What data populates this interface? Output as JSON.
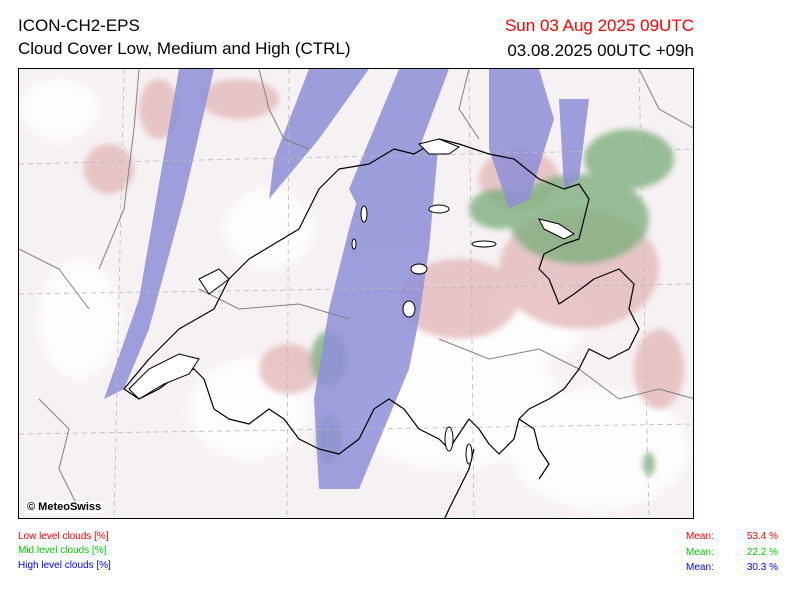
{
  "header": {
    "model": "ICON-CH2-EPS",
    "subtitle": "Cloud Cover Low, Medium and High (CTRL)",
    "valid_time": "Sun 03 Aug 2025 09UTC",
    "run_time": "03.08.2025 00UTC +09h"
  },
  "map": {
    "credit": "© MeteoSwiss",
    "icon": "copyright-icon"
  },
  "legend": {
    "items": [
      {
        "label": "Low level clouds [%]",
        "color": "#ff0000"
      },
      {
        "label": "Mid level clouds [%]",
        "color": "#00cc00"
      },
      {
        "label": "High level clouds [%]",
        "color": "#0000ff"
      }
    ]
  },
  "stats": {
    "mean_label": "Mean:",
    "items": [
      {
        "value": "53.4 %",
        "color": "#ff0000"
      },
      {
        "value": "22.2 %",
        "color": "#00cc00"
      },
      {
        "value": "30.3 %",
        "color": "#0000ff"
      }
    ]
  },
  "colors": {
    "low_cloud_fill": "#e2b5b8",
    "mid_cloud_fill": "#7fb07f",
    "high_cloud_fill": "#8f8fd8",
    "background_fill": "#f6f1f3"
  }
}
